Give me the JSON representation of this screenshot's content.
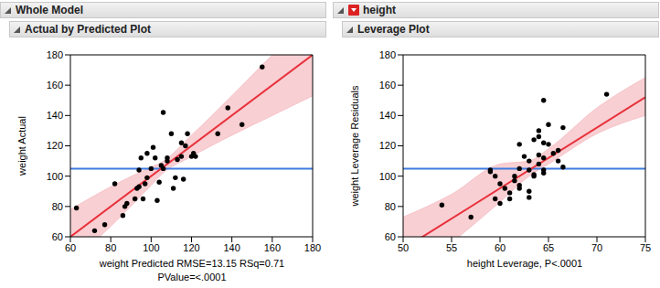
{
  "chart_data": [
    {
      "type": "scatter",
      "title": "Whole Model",
      "subtitle": "Actual by Predicted Plot",
      "x_label": [
        "weight Predicted RMSE=13.15 RSq=0.71",
        "PValue=<.0001"
      ],
      "y_label": "weight Actual",
      "xlim": [
        60,
        180
      ],
      "xticks": [
        60,
        80,
        100,
        120,
        140,
        160,
        180
      ],
      "ylim": [
        60,
        180
      ],
      "yticks": [
        60,
        80,
        100,
        120,
        140,
        160,
        180
      ],
      "color": "#000000",
      "marker": "circle",
      "x": [
        63,
        72,
        77,
        82,
        86,
        87,
        88,
        92,
        93,
        94,
        94,
        95,
        96,
        97,
        98,
        98,
        100,
        101,
        102,
        103,
        104,
        105,
        106,
        106,
        108,
        108,
        110,
        111,
        112,
        113,
        115,
        115,
        116,
        117,
        118,
        120,
        121,
        122,
        133,
        138,
        145,
        155
      ],
      "y": [
        79,
        64,
        68,
        95,
        74,
        80,
        82,
        85,
        92,
        93,
        104,
        112,
        85,
        95,
        99,
        115,
        105,
        119,
        112,
        84,
        96,
        107,
        142,
        105,
        112,
        110,
        128,
        92,
        99,
        111,
        122,
        113,
        98,
        120,
        128,
        113,
        115,
        113,
        128,
        145,
        134,
        172
      ],
      "fit": {
        "x": [
          60,
          180
        ],
        "y": [
          60,
          180
        ],
        "color": "#e8303a"
      },
      "band": {
        "x": [
          60,
          80,
          100,
          105,
          120,
          140,
          160,
          180
        ],
        "lower": [
          42,
          67,
          94,
          101,
          113,
          127,
          140,
          153
        ],
        "upper": [
          78,
          93,
          106,
          109,
          127,
          153,
          180,
          207
        ],
        "color": "#f6c3c8"
      },
      "mean": {
        "value": 105,
        "color": "#3f7be0"
      }
    },
    {
      "type": "scatter",
      "title": "height",
      "subtitle": "Leverage Plot",
      "x_label": [
        "height Leverage, P<.0001"
      ],
      "y_label": "weight Leverage Residuals",
      "xlim": [
        50,
        75
      ],
      "xticks": [
        50,
        55,
        60,
        65,
        70,
        75
      ],
      "ylim": [
        60,
        180
      ],
      "yticks": [
        60,
        80,
        100,
        120,
        140,
        160,
        180
      ],
      "color": "#000000",
      "marker": "circle",
      "x": [
        54,
        57,
        59,
        59,
        59.5,
        59.5,
        60,
        60,
        60.5,
        61,
        61,
        61.5,
        61.5,
        62,
        62,
        62,
        62,
        62.5,
        63,
        63,
        63,
        63,
        63.5,
        63.5,
        63.5,
        64,
        64,
        64,
        64,
        64.5,
        64.5,
        64.5,
        64.5,
        64.5,
        65,
        65,
        65.5,
        66,
        66,
        66.5,
        66.5,
        71
      ],
      "y": [
        81,
        73,
        104,
        103,
        100,
        85,
        82,
        95,
        92,
        89,
        85,
        100,
        97,
        94,
        92,
        105,
        121,
        113,
        86,
        90,
        104,
        110,
        101,
        124,
        100,
        126,
        130,
        114,
        108,
        102,
        104,
        112,
        122,
        150,
        121,
        134,
        115,
        110,
        117,
        132,
        106,
        154
      ],
      "fit": {
        "x": [
          50,
          75
        ],
        "y": [
          52,
          152
        ],
        "color": "#e8303a"
      },
      "band": {
        "x": [
          50,
          55,
          60,
          63,
          65,
          70,
          75
        ],
        "lower": [
          30,
          56,
          83,
          100,
          108,
          128,
          140
        ],
        "upper": [
          73,
          88,
          108,
          110,
          118,
          145,
          165
        ],
        "color": "#f6c3c8"
      },
      "mean": {
        "value": 105,
        "color": "#3f7be0"
      }
    }
  ]
}
